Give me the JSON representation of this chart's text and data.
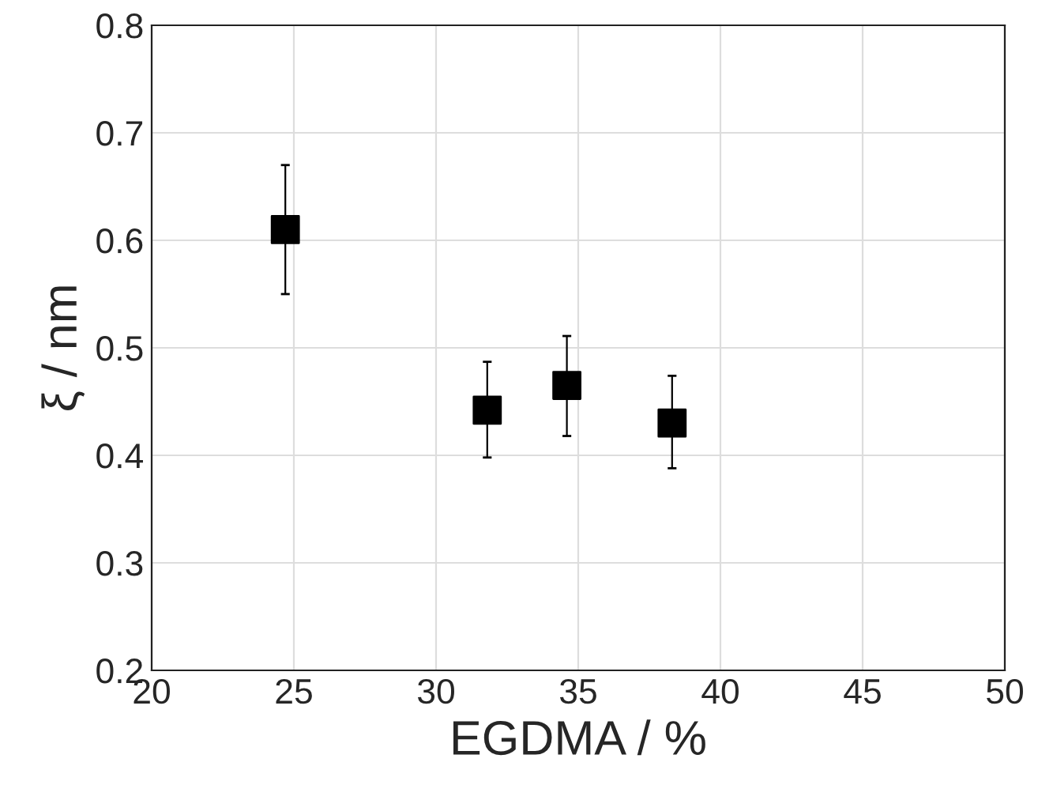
{
  "chart_data": {
    "type": "scatter",
    "xlabel": "EGDMA / %",
    "ylabel": "ξ / nm",
    "x": [
      24.7,
      31.8,
      34.6,
      38.3
    ],
    "values": [
      0.61,
      0.442,
      0.465,
      0.43
    ],
    "errors": [
      [
        0.55,
        0.67
      ],
      [
        0.398,
        0.487
      ],
      [
        0.418,
        0.511
      ],
      [
        0.388,
        0.474
      ]
    ],
    "color": "#000000",
    "marker": "square",
    "xlim": [
      20,
      50
    ],
    "xticks": [
      20,
      25,
      30,
      35,
      40,
      45,
      50
    ],
    "ylim": [
      0.2,
      0.8
    ],
    "yticks": [
      0.2,
      0.3,
      0.4,
      0.5,
      0.6,
      0.7,
      0.8
    ],
    "grid": true
  }
}
